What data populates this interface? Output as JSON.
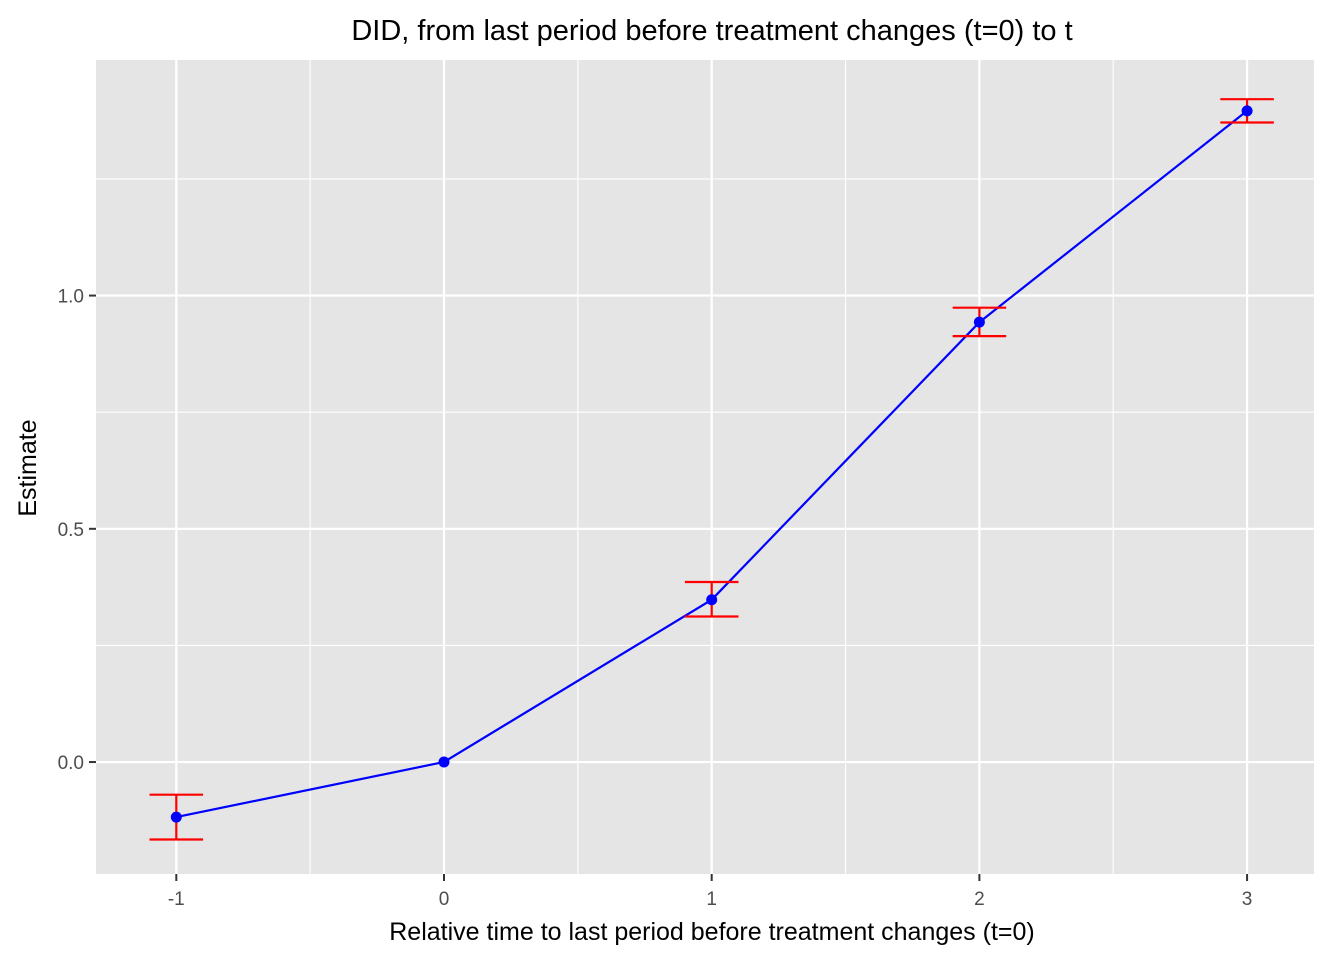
{
  "chart_data": {
    "type": "line",
    "title": "DID, from last period before treatment changes (t=0) to t",
    "xlabel": "Relative time to last period before treatment changes (t=0)",
    "ylabel": "Estimate",
    "x": [
      -1,
      0,
      1,
      2,
      3
    ],
    "series": [
      {
        "values": [
          -0.118,
          0.0,
          0.348,
          0.943,
          1.396
        ],
        "ci_lower": [
          -0.166,
          0.0,
          0.312,
          0.913,
          1.371
        ],
        "ci_upper": [
          -0.07,
          0.0,
          0.386,
          0.974,
          1.421
        ],
        "line_color": "#0000ff",
        "point_color": "#0000ff",
        "errorbar_color": "#ff0000"
      }
    ],
    "xlim": [
      -1.3,
      3.25
    ],
    "ylim": [
      -0.24,
      1.505
    ],
    "x_ticks": [
      -1,
      0,
      1,
      2,
      3
    ],
    "x_tick_labels": [
      "-1",
      "0",
      "1",
      "2",
      "3"
    ],
    "y_ticks": [
      0.0,
      0.5,
      1.0
    ],
    "y_tick_labels": [
      "0.0",
      "0.5",
      "1.0"
    ],
    "y_minor_ticks": [
      0.25,
      0.75,
      1.25
    ],
    "x_minor_ticks": [
      -0.5,
      0.5,
      1.5,
      2.5
    ],
    "grid": true,
    "legend": "none",
    "panel_background": "#e5e5e5",
    "grid_color": "#ffffff"
  }
}
